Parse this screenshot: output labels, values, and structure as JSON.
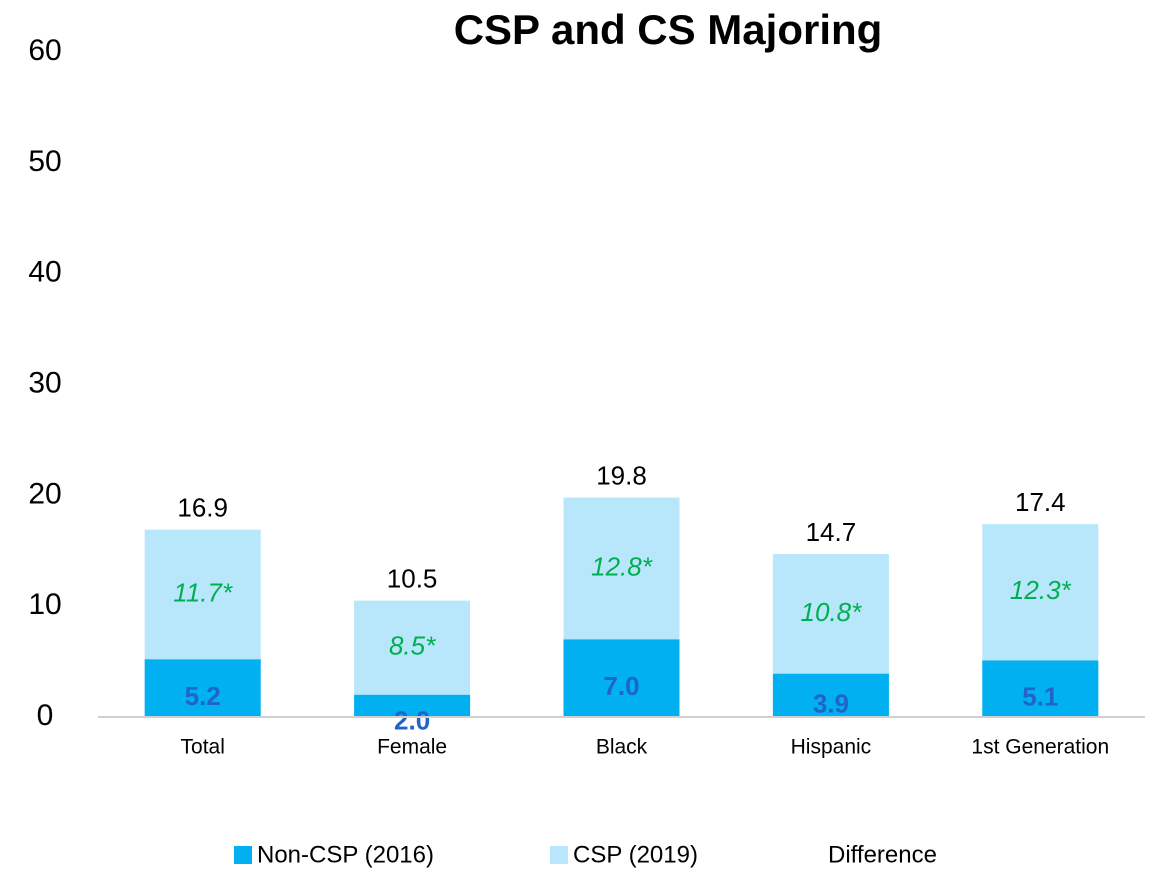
{
  "chart_data": {
    "type": "bar",
    "title": "CSP and CS Majoring",
    "categories": [
      "Total",
      "Female",
      "Black",
      "Hispanic",
      "1st Generation"
    ],
    "series": [
      {
        "name": "Non-CSP (2016)",
        "color": "#00b0f0",
        "values": [
          5.2,
          2.0,
          7.0,
          3.9,
          5.1
        ],
        "value_labels": [
          "5.2",
          "2.0",
          "7.0",
          "3.9",
          "5.1"
        ]
      },
      {
        "name": "CSP (2019)",
        "color": "#b8e6fa",
        "values": [
          16.9,
          10.5,
          19.8,
          14.7,
          17.4
        ]
      },
      {
        "name": "Difference",
        "values": [
          11.7,
          8.5,
          12.8,
          10.8,
          12.3
        ],
        "value_labels": [
          "11.7*",
          "8.5*",
          "12.8*",
          "10.8*",
          "12.3*"
        ]
      }
    ],
    "ylim": [
      0,
      60
    ],
    "yticks": [
      0,
      10,
      20,
      30,
      40,
      50,
      60
    ],
    "grid": false
  }
}
